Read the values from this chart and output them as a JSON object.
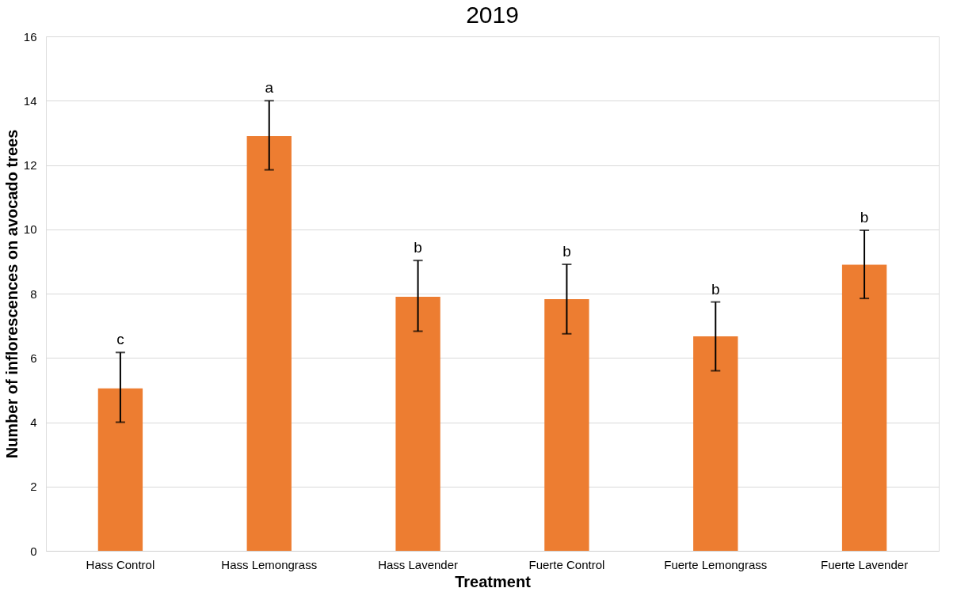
{
  "chart_data": {
    "type": "bar",
    "title": "2019",
    "xlabel": "Treatment",
    "ylabel": "Number of inflorescences on avocado trees",
    "categories": [
      "Hass Control",
      "Hass Lemongrass",
      "Hass Lavender",
      "Fuerte Control",
      "Fuerte Lemongrass",
      "Fuerte Lavender"
    ],
    "series": [
      {
        "color": "#ed7d31",
        "values": [
          5.05,
          12.9,
          7.9,
          7.83,
          6.67,
          8.9
        ],
        "errors": [
          [
            4.0,
            6.17
          ],
          [
            11.85,
            14.0
          ],
          [
            6.83,
            9.03
          ],
          [
            6.75,
            8.91
          ],
          [
            5.6,
            7.74
          ],
          [
            7.85,
            9.97
          ]
        ]
      }
    ],
    "ylim": [
      0,
      16
    ],
    "yticks": [
      0,
      2,
      4,
      6,
      8,
      10,
      12,
      14,
      16
    ],
    "grid": "y",
    "annotations": [
      {
        "text": "c",
        "x": "Hass Control",
        "y": 6.17
      },
      {
        "text": "a",
        "x": "Hass Lemongrass",
        "y": 14.0
      },
      {
        "text": "b",
        "x": "Hass Lavender",
        "y": 9.03
      },
      {
        "text": "b",
        "x": "Fuerte Control",
        "y": 8.91
      },
      {
        "text": "b",
        "x": "Fuerte Lemongrass",
        "y": 7.74
      },
      {
        "text": "b",
        "x": "Fuerte Lavender",
        "y": 9.97
      }
    ]
  }
}
